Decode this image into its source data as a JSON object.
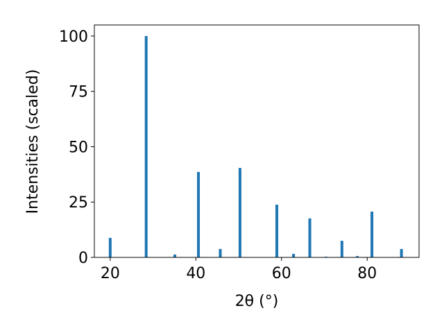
{
  "chart_data": {
    "type": "bar",
    "x": [
      20.0,
      28.4,
      35.1,
      40.6,
      45.7,
      50.3,
      58.9,
      62.8,
      66.6,
      70.4,
      74.1,
      77.7,
      81.1,
      88.0
    ],
    "values": [
      8.8,
      100,
      1.3,
      38.6,
      3.8,
      40.4,
      23.8,
      1.6,
      17.6,
      0.3,
      7.5,
      0.6,
      20.7,
      3.8
    ],
    "color": "#1f77b4",
    "xlabel": "2θ (°)",
    "ylabel": "Intensities (scaled)",
    "xlim": [
      16.3,
      92.1
    ],
    "ylim": [
      0,
      105
    ],
    "xticks": [
      20,
      40,
      60,
      80
    ],
    "yticks": [
      0,
      25,
      50,
      75,
      100
    ]
  }
}
